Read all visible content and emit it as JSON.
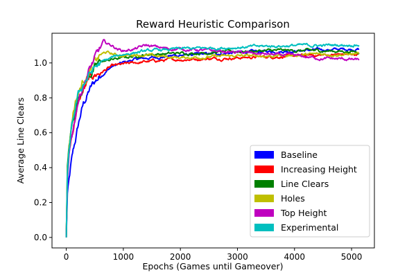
{
  "chart_data": {
    "type": "line",
    "title": "Reward Heuristic Comparison",
    "xlabel": "Epochs (Games until Gameover)",
    "ylabel": "Average Line Clears",
    "xlim": [
      -250,
      5400
    ],
    "ylim": [
      -0.06,
      1.17
    ],
    "xticks": [
      0,
      1000,
      2000,
      3000,
      4000,
      5000
    ],
    "yticks": [
      0.0,
      0.2,
      0.4,
      0.6,
      0.8,
      1.0
    ],
    "xtick_labels": [
      "0",
      "1000",
      "2000",
      "3000",
      "4000",
      "5000"
    ],
    "ytick_labels": [
      "0.0",
      "0.2",
      "0.4",
      "0.6",
      "0.8",
      "1.0"
    ],
    "grid": false,
    "legend_position": "lower right",
    "series": [
      {
        "name": "Baseline",
        "color": "#0000ff",
        "points": [
          [
            0,
            0.0
          ],
          [
            20,
            0.25
          ],
          [
            50,
            0.32
          ],
          [
            80,
            0.4
          ],
          [
            120,
            0.48
          ],
          [
            160,
            0.55
          ],
          [
            200,
            0.62
          ],
          [
            250,
            0.7
          ],
          [
            300,
            0.76
          ],
          [
            400,
            0.84
          ],
          [
            500,
            0.89
          ],
          [
            600,
            0.93
          ],
          [
            800,
            0.98
          ],
          [
            1000,
            1.0
          ],
          [
            1200,
            1.02
          ],
          [
            1500,
            1.03
          ],
          [
            2000,
            1.045
          ],
          [
            2500,
            1.05
          ],
          [
            3000,
            1.06
          ],
          [
            3500,
            1.065
          ],
          [
            4000,
            1.07
          ],
          [
            4500,
            1.075
          ],
          [
            5000,
            1.08
          ],
          [
            5130,
            1.08
          ]
        ]
      },
      {
        "name": "Increasing Height",
        "color": "#ff0000",
        "points": [
          [
            0,
            0.0
          ],
          [
            20,
            0.35
          ],
          [
            50,
            0.48
          ],
          [
            80,
            0.55
          ],
          [
            120,
            0.62
          ],
          [
            160,
            0.7
          ],
          [
            200,
            0.76
          ],
          [
            300,
            0.84
          ],
          [
            400,
            0.9
          ],
          [
            500,
            0.93
          ],
          [
            600,
            0.95
          ],
          [
            800,
            0.98
          ],
          [
            1000,
            0.99
          ],
          [
            1200,
            1.0
          ],
          [
            1500,
            1.01
          ],
          [
            2000,
            1.02
          ],
          [
            2500,
            1.025
          ],
          [
            3000,
            1.03
          ],
          [
            3500,
            1.035
          ],
          [
            4000,
            1.04
          ],
          [
            4500,
            1.045
          ],
          [
            5000,
            1.05
          ],
          [
            5130,
            1.05
          ]
        ]
      },
      {
        "name": "Line Clears",
        "color": "#008000",
        "points": [
          [
            0,
            0.0
          ],
          [
            20,
            0.4
          ],
          [
            50,
            0.52
          ],
          [
            80,
            0.6
          ],
          [
            120,
            0.68
          ],
          [
            160,
            0.74
          ],
          [
            200,
            0.8
          ],
          [
            300,
            0.88
          ],
          [
            400,
            0.93
          ],
          [
            500,
            0.97
          ],
          [
            600,
            1.0
          ],
          [
            800,
            1.02
          ],
          [
            1000,
            1.03
          ],
          [
            1200,
            1.04
          ],
          [
            1500,
            1.05
          ],
          [
            2000,
            1.055
          ],
          [
            2500,
            1.06
          ],
          [
            3000,
            1.065
          ],
          [
            3500,
            1.07
          ],
          [
            4000,
            1.07
          ],
          [
            4500,
            1.07
          ],
          [
            5000,
            1.065
          ],
          [
            5130,
            1.065
          ]
        ]
      },
      {
        "name": "Holes",
        "color": "#bfbf00",
        "points": [
          [
            0,
            0.0
          ],
          [
            20,
            0.38
          ],
          [
            50,
            0.52
          ],
          [
            80,
            0.62
          ],
          [
            120,
            0.72
          ],
          [
            160,
            0.78
          ],
          [
            200,
            0.82
          ],
          [
            300,
            0.9
          ],
          [
            400,
            0.95
          ],
          [
            500,
            1.0
          ],
          [
            600,
            1.04
          ],
          [
            700,
            1.06
          ],
          [
            800,
            1.05
          ],
          [
            1000,
            1.04
          ],
          [
            1200,
            1.05
          ],
          [
            1500,
            1.04
          ],
          [
            2000,
            1.03
          ],
          [
            2500,
            1.035
          ],
          [
            3000,
            1.04
          ],
          [
            3500,
            1.04
          ],
          [
            4000,
            1.045
          ],
          [
            4500,
            1.05
          ],
          [
            5000,
            1.05
          ],
          [
            5130,
            1.05
          ]
        ]
      },
      {
        "name": "Top Height",
        "color": "#bf00bf",
        "points": [
          [
            0,
            0.0
          ],
          [
            20,
            0.3
          ],
          [
            50,
            0.45
          ],
          [
            80,
            0.55
          ],
          [
            120,
            0.62
          ],
          [
            160,
            0.7
          ],
          [
            200,
            0.78
          ],
          [
            300,
            0.88
          ],
          [
            400,
            0.96
          ],
          [
            500,
            1.02
          ],
          [
            600,
            1.08
          ],
          [
            650,
            1.12
          ],
          [
            700,
            1.11
          ],
          [
            800,
            1.1
          ],
          [
            900,
            1.08
          ],
          [
            1000,
            1.07
          ],
          [
            1200,
            1.08
          ],
          [
            1400,
            1.1
          ],
          [
            1600,
            1.09
          ],
          [
            1800,
            1.08
          ],
          [
            2000,
            1.08
          ],
          [
            2500,
            1.07
          ],
          [
            3000,
            1.06
          ],
          [
            3500,
            1.05
          ],
          [
            4000,
            1.04
          ],
          [
            4500,
            1.025
          ],
          [
            5000,
            1.02
          ],
          [
            5130,
            1.015
          ]
        ]
      },
      {
        "name": "Experimental",
        "color": "#00bfbf",
        "points": [
          [
            0,
            0.0
          ],
          [
            20,
            0.35
          ],
          [
            50,
            0.48
          ],
          [
            80,
            0.58
          ],
          [
            120,
            0.66
          ],
          [
            160,
            0.74
          ],
          [
            200,
            0.8
          ],
          [
            300,
            0.88
          ],
          [
            400,
            0.93
          ],
          [
            500,
            0.97
          ],
          [
            600,
            1.0
          ],
          [
            800,
            1.03
          ],
          [
            1000,
            1.05
          ],
          [
            1200,
            1.06
          ],
          [
            1500,
            1.07
          ],
          [
            2000,
            1.08
          ],
          [
            2500,
            1.085
          ],
          [
            3000,
            1.09
          ],
          [
            3500,
            1.095
          ],
          [
            4000,
            1.1
          ],
          [
            4500,
            1.1
          ],
          [
            5000,
            1.105
          ],
          [
            5130,
            1.105
          ]
        ]
      }
    ]
  }
}
